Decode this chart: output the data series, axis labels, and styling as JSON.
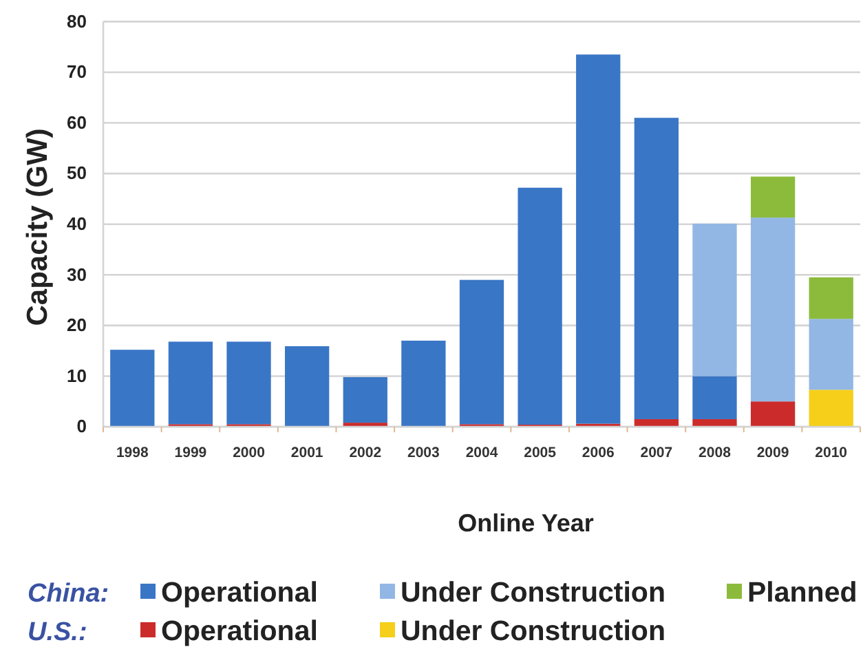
{
  "chart_data": {
    "type": "bar",
    "stacked": true,
    "categories": [
      "1998",
      "1999",
      "2000",
      "2001",
      "2002",
      "2003",
      "2004",
      "2005",
      "2006",
      "2007",
      "2008",
      "2009",
      "2010"
    ],
    "series": [
      {
        "name": "Operational",
        "color": "#cc2b2b",
        "values": [
          null,
          0.5,
          0.5,
          null,
          0.8,
          null,
          0.5,
          0.4,
          0.6,
          1.5,
          1.5,
          5,
          null
        ]
      },
      {
        "name": "Under Construction",
        "color": "#f5cf1a",
        "values": [
          null,
          null,
          null,
          null,
          null,
          null,
          null,
          null,
          null,
          null,
          null,
          null,
          7.3
        ]
      },
      {
        "name": "Operational",
        "color": "#3a76c6",
        "values": [
          15.2,
          16.3,
          16.3,
          15.9,
          9,
          17,
          28.5,
          46.8,
          72.9,
          59.5,
          8.5,
          null,
          null
        ]
      },
      {
        "name": "Under Construction",
        "color": "#93b7e4",
        "values": [
          null,
          null,
          null,
          null,
          null,
          null,
          null,
          null,
          null,
          null,
          30.1,
          36.3,
          14
        ]
      },
      {
        "name": "Planned",
        "color": "#8cbb3c",
        "values": [
          null,
          null,
          null,
          null,
          null,
          null,
          null,
          null,
          null,
          null,
          null,
          8.1,
          8.2
        ]
      }
    ],
    "xlabel": "Online Year",
    "ylabel": "Capacity (GW)",
    "ylim": [
      0,
      80
    ],
    "yticks": [
      0,
      10,
      20,
      30,
      40,
      50,
      60,
      70,
      80
    ],
    "grid": "y",
    "legend": "bottom",
    "annotations": [
      "China:",
      "U.S.:"
    ]
  }
}
